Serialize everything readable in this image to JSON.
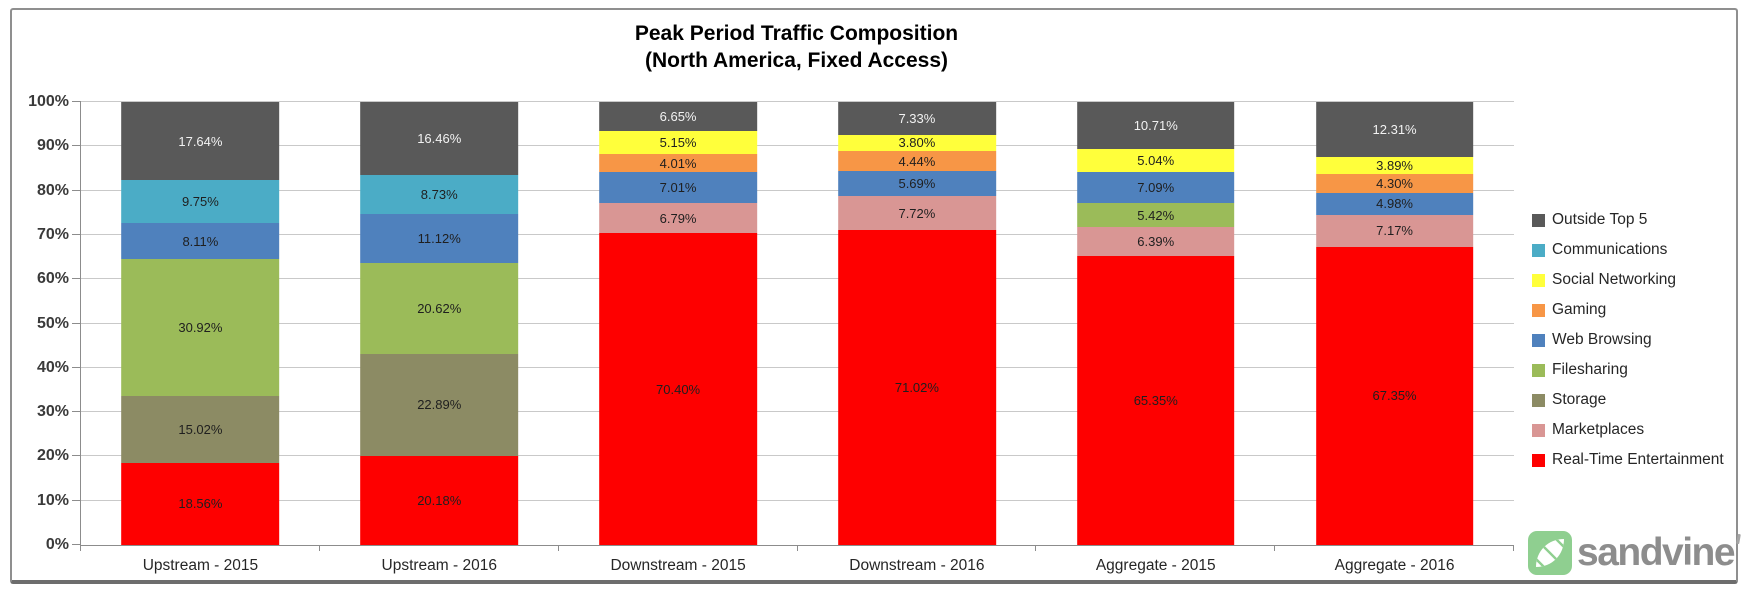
{
  "chart_data": {
    "type": "bar",
    "subtype": "stacked-100",
    "title_line1": "Peak Period Traffic Composition",
    "title_line2": "(North America, Fixed Access)",
    "categories": [
      "Upstream - 2015",
      "Upstream - 2016",
      "Downstream - 2015",
      "Downstream - 2016",
      "Aggregate - 2015",
      "Aggregate - 2016"
    ],
    "series": [
      {
        "name": "Real-Time Entertainment",
        "color": "#FE0000",
        "label_color": "#1f1f1f",
        "values": [
          18.56,
          20.18,
          70.4,
          71.02,
          65.35,
          67.35
        ]
      },
      {
        "name": "Marketplaces",
        "color": "#D99694",
        "label_color": "#1f1f1f",
        "values": [
          0,
          0,
          6.79,
          7.72,
          6.39,
          7.17
        ]
      },
      {
        "name": "Storage",
        "color": "#8C8B64",
        "label_color": "#1f1f1f",
        "values": [
          15.02,
          22.89,
          0,
          0,
          0,
          0
        ]
      },
      {
        "name": "Filesharing",
        "color": "#9BBB59",
        "label_color": "#1f1f1f",
        "values": [
          30.92,
          20.62,
          0,
          0,
          5.42,
          0
        ]
      },
      {
        "name": "Web Browsing",
        "color": "#4F81BD",
        "label_color": "#1f1f1f",
        "values": [
          8.11,
          11.12,
          7.01,
          5.69,
          7.09,
          4.98
        ]
      },
      {
        "name": "Gaming",
        "color": "#F79646",
        "label_color": "#1f1f1f",
        "values": [
          0,
          0,
          4.01,
          4.44,
          0,
          4.3
        ]
      },
      {
        "name": "Social Networking",
        "color": "#FFFF3B",
        "label_color": "#1f1f1f",
        "values": [
          0,
          0,
          5.15,
          3.8,
          5.04,
          3.89
        ]
      },
      {
        "name": "Communications",
        "color": "#4BACC6",
        "label_color": "#1f1f1f",
        "values": [
          9.75,
          8.73,
          0,
          0,
          0,
          0
        ]
      },
      {
        "name": "Outside Top 5",
        "color": "#595959",
        "label_color": "#F2F2F2",
        "values": [
          17.64,
          16.46,
          6.65,
          7.33,
          10.71,
          12.31
        ]
      }
    ],
    "stack_order": "series listed bottom-to-top",
    "legend_position": "right",
    "legend_order_top_to_bottom": [
      "Outside Top 5",
      "Communications",
      "Social Networking",
      "Gaming",
      "Web Browsing",
      "Filesharing",
      "Storage",
      "Marketplaces",
      "Real-Time Entertainment"
    ],
    "y_axis": {
      "min": 0,
      "max": 100,
      "step": 10,
      "gridlines": true,
      "tick_labels": [
        "0%",
        "10%",
        "20%",
        "30%",
        "40%",
        "50%",
        "60%",
        "70%",
        "80%",
        "90%",
        "100%"
      ]
    },
    "data_label_format": "0.00%"
  },
  "logo": {
    "text": "sandvine",
    "icon": "sandvine-leaf-icon",
    "icon_color": "#8FCF90",
    "text_color": "#8D8D8D"
  }
}
